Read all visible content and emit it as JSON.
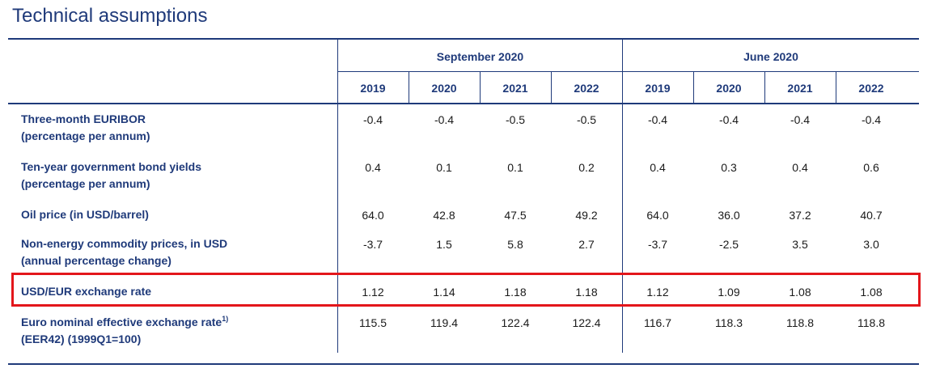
{
  "title": "Technical assumptions",
  "groups": [
    "September 2020",
    "June 2020"
  ],
  "years": [
    "2019",
    "2020",
    "2021",
    "2022",
    "2019",
    "2020",
    "2021",
    "2022"
  ],
  "rows": [
    {
      "label": "Three-month EURIBOR",
      "label2": "(percentage per annum)",
      "values": [
        "-0.4",
        "-0.4",
        "-0.5",
        "-0.5",
        "-0.4",
        "-0.4",
        "-0.4",
        "-0.4"
      ]
    },
    {
      "label": "Ten-year government bond yields",
      "label2": "(percentage per annum)",
      "values": [
        "0.4",
        "0.1",
        "0.1",
        "0.2",
        "0.4",
        "0.3",
        "0.4",
        "0.6"
      ]
    },
    {
      "label": "Oil price (in USD/barrel)",
      "label2": "",
      "values": [
        "64.0",
        "42.8",
        "47.5",
        "49.2",
        "64.0",
        "36.0",
        "37.2",
        "40.7"
      ]
    },
    {
      "label": "Non-energy commodity prices, in USD",
      "label2": "(annual percentage change)",
      "values": [
        "-3.7",
        "1.5",
        "5.8",
        "2.7",
        "-3.7",
        "-2.5",
        "3.5",
        "3.0"
      ]
    },
    {
      "label": "USD/EUR exchange rate",
      "label2": "",
      "values": [
        "1.12",
        "1.14",
        "1.18",
        "1.18",
        "1.12",
        "1.09",
        "1.08",
        "1.08"
      ]
    },
    {
      "label": "Euro nominal effective exchange rate",
      "sup": "1)",
      "label2": "(EER42) (1999Q1=100)",
      "values": [
        "115.5",
        "119.4",
        "122.4",
        "122.4",
        "116.7",
        "118.3",
        "118.8",
        "118.8"
      ]
    }
  ],
  "highlight_color": "#e3161b",
  "accent_color": "#1f3a7a"
}
